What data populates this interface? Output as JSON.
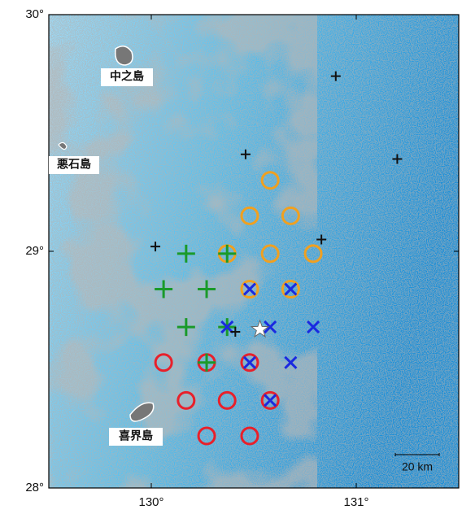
{
  "chart_data": {
    "type": "scatter",
    "xlim": [
      129.5,
      131.5
    ],
    "ylim": [
      28,
      30
    ],
    "xticks": [
      {
        "value": 130,
        "label": "130°"
      },
      {
        "value": 131,
        "label": "131°"
      }
    ],
    "yticks": [
      {
        "value": 28,
        "label": "28°"
      },
      {
        "value": 29,
        "label": "29°"
      },
      {
        "value": 30,
        "label": "30°"
      }
    ],
    "annotations": [
      "中之島",
      "悪石島",
      "喜界島"
    ],
    "scale_bar": "20 km",
    "series": [
      {
        "marker": "circle",
        "color": "#f0a020",
        "x": [
          130.58,
          130.48,
          130.68,
          130.37,
          130.58,
          130.79,
          130.48,
          130.68
        ],
        "y": [
          29.3,
          29.15,
          29.15,
          28.99,
          28.99,
          28.99,
          28.84,
          28.84
        ]
      },
      {
        "marker": "circle",
        "color": "#e8202a",
        "x": [
          130.06,
          130.27,
          130.48,
          130.17,
          130.37,
          130.58,
          130.27,
          130.48
        ],
        "y": [
          28.53,
          28.53,
          28.53,
          28.37,
          28.37,
          28.37,
          28.22,
          28.22
        ]
      },
      {
        "marker": "plus",
        "color": "#1a9a2a",
        "x": [
          130.17,
          130.37,
          130.06,
          130.27,
          130.17,
          130.37,
          130.27
        ],
        "y": [
          28.99,
          28.99,
          28.84,
          28.84,
          28.68,
          28.68,
          28.53
        ]
      },
      {
        "marker": "cross",
        "color": "#1a2ae0",
        "x": [
          130.48,
          130.68,
          130.37,
          130.58,
          130.79,
          130.48,
          130.68,
          130.58
        ],
        "y": [
          28.84,
          28.84,
          28.68,
          28.68,
          28.68,
          28.53,
          28.53,
          28.37
        ]
      },
      {
        "marker": "small-plus",
        "color": "#111111",
        "x": [
          130.9,
          130.46,
          131.2,
          130.02,
          130.83,
          130.41
        ],
        "y": [
          29.74,
          29.41,
          29.39,
          29.02,
          29.05,
          28.66
        ]
      },
      {
        "marker": "star",
        "color": "#ffffff",
        "x": [
          130.53
        ],
        "y": [
          28.67
        ]
      }
    ]
  }
}
